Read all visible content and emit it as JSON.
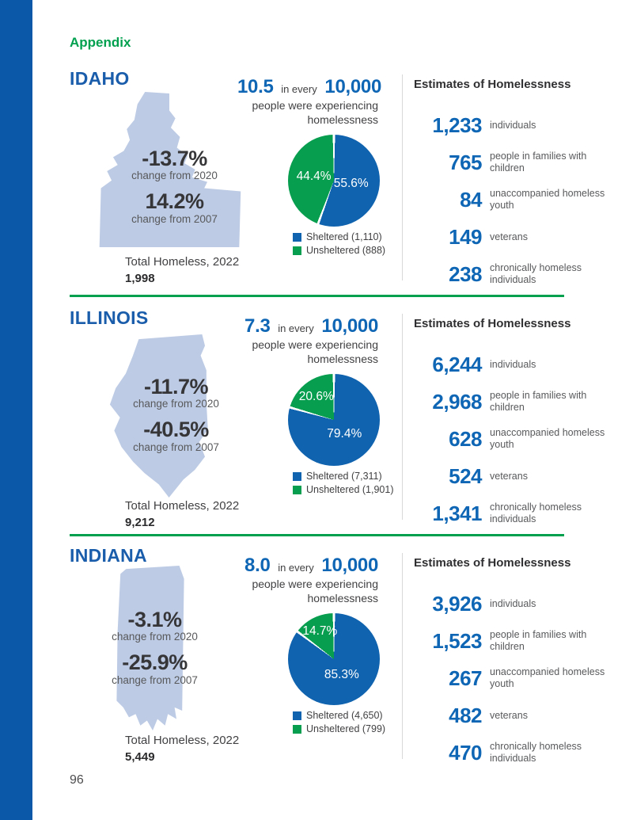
{
  "colors": {
    "sidebar_blue": "#0b58a8",
    "heading_blue": "#1a5dab",
    "number_blue": "#0e66b4",
    "green": "#00a04f",
    "map_fill": "#bdcbe4",
    "text_dark": "#414042",
    "label_gray": "#58595b",
    "separator_gray": "#d8d8d8",
    "pie_blue": "#1063ae",
    "pie_green": "#089e4f"
  },
  "appendix_label": "Appendix",
  "page_number": "96",
  "shared": {
    "in_every": "in every",
    "denominator": "10,000",
    "experiencing_line1": "people were experiencing",
    "experiencing_line2": "homelessness",
    "total_label": "Total Homeless, 2022",
    "estimates_header": "Estimates of Homelessness"
  },
  "states": [
    {
      "name": "IDAHO",
      "rate": "10.5",
      "changes": [
        {
          "value": "-13.7%",
          "label": "change from 2020"
        },
        {
          "value": "14.2%",
          "label": "change from 2007"
        }
      ],
      "total": "1,998",
      "pie": {
        "sheltered_pct": 55.6,
        "unsheltered_pct": 44.4,
        "sheltered_pct_label": "55.6%",
        "unsheltered_pct_label": "44.4%",
        "legend_sheltered": "Sheltered (1,110)",
        "legend_unsheltered": "Unsheltered (888)"
      },
      "estimates": [
        {
          "value": "1,233",
          "label": "individuals"
        },
        {
          "value": "765",
          "label": "people in families with children"
        },
        {
          "value": "84",
          "label": "unaccompanied homeless youth"
        },
        {
          "value": "149",
          "label": "veterans"
        },
        {
          "value": "238",
          "label": "chronically homeless individuals"
        }
      ]
    },
    {
      "name": "ILLINOIS",
      "rate": "7.3",
      "changes": [
        {
          "value": "-11.7%",
          "label": "change from 2020"
        },
        {
          "value": "-40.5%",
          "label": "change from 2007"
        }
      ],
      "total": "9,212",
      "pie": {
        "sheltered_pct": 79.4,
        "unsheltered_pct": 20.6,
        "sheltered_pct_label": "79.4%",
        "unsheltered_pct_label": "20.6%",
        "legend_sheltered": "Sheltered (7,311)",
        "legend_unsheltered": "Unsheltered (1,901)"
      },
      "estimates": [
        {
          "value": "6,244",
          "label": "individuals"
        },
        {
          "value": "2,968",
          "label": "people in families with children"
        },
        {
          "value": "628",
          "label": "unaccompanied homeless youth"
        },
        {
          "value": "524",
          "label": "veterans"
        },
        {
          "value": "1,341",
          "label": "chronically homeless individuals"
        }
      ]
    },
    {
      "name": "INDIANA",
      "rate": "8.0",
      "changes": [
        {
          "value": "-3.1%",
          "label": "change from 2020"
        },
        {
          "value": "-25.9%",
          "label": "change from 2007"
        }
      ],
      "total": "5,449",
      "pie": {
        "sheltered_pct": 85.3,
        "unsheltered_pct": 14.7,
        "sheltered_pct_label": "85.3%",
        "unsheltered_pct_label": "14.7%",
        "legend_sheltered": "Sheltered (4,650)",
        "legend_unsheltered": "Unsheltered (799)"
      },
      "estimates": [
        {
          "value": "3,926",
          "label": "individuals"
        },
        {
          "value": "1,523",
          "label": "people in families with children"
        },
        {
          "value": "267",
          "label": "unaccompanied homeless youth"
        },
        {
          "value": "482",
          "label": "veterans"
        },
        {
          "value": "470",
          "label": "chronically homeless individuals"
        }
      ]
    }
  ],
  "chart_data": [
    {
      "type": "pie",
      "title": "Idaho sheltered vs unsheltered homelessness 2022",
      "labels": [
        "Sheltered",
        "Unsheltered"
      ],
      "values": [
        1110,
        888
      ],
      "percentages": [
        55.6,
        44.4
      ],
      "legend_position": "below",
      "rate_per_10000": 10.5
    },
    {
      "type": "pie",
      "title": "Illinois sheltered vs unsheltered homelessness 2022",
      "labels": [
        "Sheltered",
        "Unsheltered"
      ],
      "values": [
        7311,
        1901
      ],
      "percentages": [
        79.4,
        20.6
      ],
      "legend_position": "below",
      "rate_per_10000": 7.3
    },
    {
      "type": "pie",
      "title": "Indiana sheltered vs unsheltered homelessness 2022",
      "labels": [
        "Sheltered",
        "Unsheltered"
      ],
      "values": [
        4650,
        799
      ],
      "percentages": [
        85.3,
        14.7
      ],
      "legend_position": "below",
      "rate_per_10000": 8.0
    }
  ]
}
